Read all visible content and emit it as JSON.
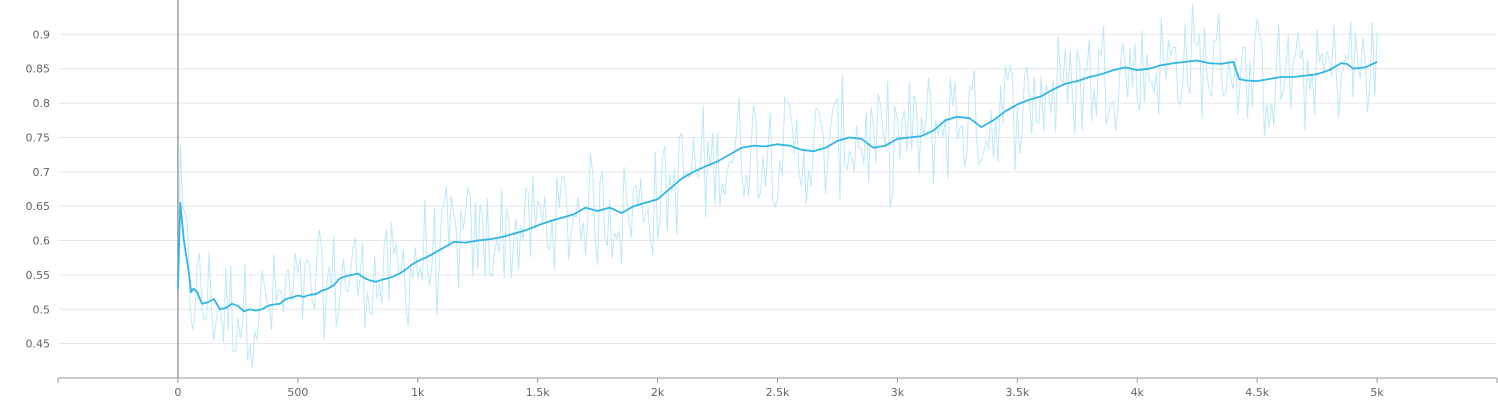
{
  "chart_data": {
    "type": "line",
    "title": "",
    "xlabel": "",
    "ylabel": "",
    "xlim": [
      -500,
      5500
    ],
    "ylim": [
      0.4,
      0.95
    ],
    "grid": true,
    "x_ticks": [
      0,
      500,
      1000,
      1500,
      2000,
      2500,
      3000,
      3500,
      4000,
      4500,
      5000
    ],
    "x_tick_labels": [
      "0",
      "500",
      "1k",
      "1.5k",
      "2k",
      "2.5k",
      "3k",
      "3.5k",
      "4k",
      "4.5k",
      "5k"
    ],
    "y_ticks": [
      0.45,
      0.5,
      0.55,
      0.6,
      0.65,
      0.7,
      0.75,
      0.8,
      0.85,
      0.9
    ],
    "y_tick_labels": [
      "0.45",
      "0.5",
      "0.55",
      "0.6",
      "0.65",
      "0.7",
      "0.75",
      "0.8",
      "0.85",
      "0.9"
    ],
    "colors": {
      "smoothed": "#33b5e5",
      "raw": "#bde9f6",
      "axis": "#999999",
      "grid": "#e6e6e6",
      "zero_line": "#9e9e9e"
    },
    "series": [
      {
        "role": "smoothed",
        "x": [
          0,
          10,
          25,
          45,
          55,
          65,
          80,
          100,
          125,
          150,
          175,
          200,
          225,
          250,
          275,
          300,
          325,
          350,
          375,
          400,
          425,
          450,
          475,
          500,
          525,
          550,
          575,
          600,
          625,
          650,
          675,
          700,
          725,
          750,
          775,
          800,
          825,
          850,
          875,
          900,
          925,
          950,
          975,
          1000,
          1050,
          1100,
          1150,
          1200,
          1250,
          1300,
          1350,
          1400,
          1450,
          1500,
          1550,
          1600,
          1650,
          1700,
          1750,
          1800,
          1850,
          1900,
          1950,
          2000,
          2050,
          2100,
          2150,
          2200,
          2250,
          2300,
          2350,
          2400,
          2450,
          2500,
          2550,
          2600,
          2650,
          2700,
          2750,
          2800,
          2850,
          2900,
          2950,
          3000,
          3050,
          3100,
          3150,
          3200,
          3250,
          3300,
          3350,
          3400,
          3450,
          3500,
          3550,
          3600,
          3650,
          3700,
          3750,
          3800,
          3850,
          3900,
          3950,
          4000,
          4050,
          4100,
          4150,
          4200,
          4250,
          4300,
          4350,
          4400,
          4425,
          4450,
          4500,
          4550,
          4600,
          4650,
          4700,
          4750,
          4800,
          4850,
          4875,
          4900,
          4950,
          5000
        ],
        "y": [
          0.53,
          0.655,
          0.6,
          0.555,
          0.525,
          0.53,
          0.525,
          0.508,
          0.51,
          0.515,
          0.5,
          0.502,
          0.508,
          0.505,
          0.497,
          0.5,
          0.498,
          0.5,
          0.505,
          0.507,
          0.508,
          0.515,
          0.517,
          0.52,
          0.518,
          0.521,
          0.522,
          0.527,
          0.53,
          0.535,
          0.545,
          0.548,
          0.55,
          0.552,
          0.546,
          0.542,
          0.54,
          0.543,
          0.545,
          0.548,
          0.552,
          0.558,
          0.565,
          0.57,
          0.578,
          0.588,
          0.598,
          0.597,
          0.6,
          0.602,
          0.605,
          0.61,
          0.615,
          0.622,
          0.628,
          0.633,
          0.638,
          0.648,
          0.643,
          0.648,
          0.64,
          0.65,
          0.655,
          0.66,
          0.675,
          0.69,
          0.7,
          0.708,
          0.715,
          0.725,
          0.735,
          0.738,
          0.737,
          0.74,
          0.738,
          0.732,
          0.73,
          0.735,
          0.745,
          0.75,
          0.748,
          0.735,
          0.738,
          0.748,
          0.75,
          0.752,
          0.76,
          0.775,
          0.78,
          0.778,
          0.765,
          0.775,
          0.788,
          0.798,
          0.805,
          0.81,
          0.82,
          0.828,
          0.832,
          0.838,
          0.842,
          0.848,
          0.852,
          0.848,
          0.85,
          0.855,
          0.858,
          0.86,
          0.862,
          0.858,
          0.857,
          0.86,
          0.835,
          0.833,
          0.832,
          0.835,
          0.838,
          0.838,
          0.84,
          0.842,
          0.848,
          0.858,
          0.857,
          0.85,
          0.852,
          0.86
        ]
      }
    ]
  }
}
